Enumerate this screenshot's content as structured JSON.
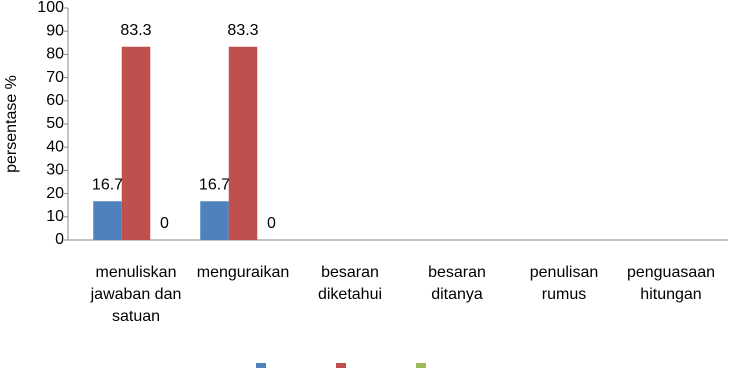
{
  "chart_data": {
    "type": "bar",
    "y_label": "persentase %",
    "categories": [
      "menuliskan jawaban dan satuan",
      "menguraikan",
      "besaran diketahui",
      "besaran ditanya",
      "penulisan rumus",
      "penguasaan hitungan"
    ],
    "series": [
      {
        "color": "#4f81bd",
        "values": [
          16.7,
          16.7,
          null,
          null,
          null,
          null
        ]
      },
      {
        "color": "#c0504d",
        "values": [
          83.3,
          83.3,
          null,
          null,
          null,
          null
        ]
      },
      {
        "color": "#9bbb59",
        "values": [
          0,
          0,
          null,
          null,
          null,
          null
        ]
      }
    ],
    "ylim": [
      0,
      100
    ],
    "yticks": [
      0,
      10,
      20,
      30,
      40,
      50,
      60,
      70,
      80,
      90,
      100
    ],
    "grid": false
  }
}
